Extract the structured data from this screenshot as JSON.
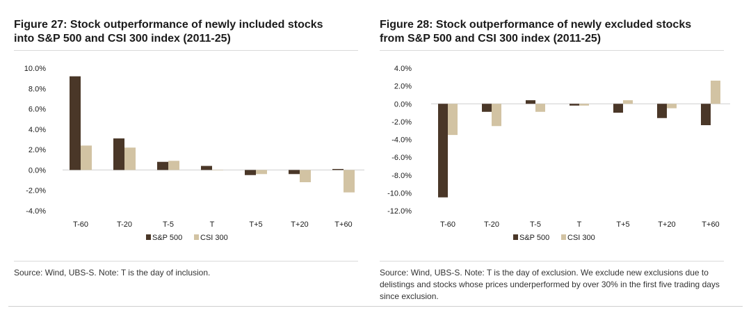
{
  "colors": {
    "sp500": "#4a3728",
    "csi300": "#d2c3a3",
    "zero_line": "#cfcfcf",
    "text": "#1a1a1a"
  },
  "left_panel": {
    "title_line1": "Figure 27: Stock outperformance of newly included stocks",
    "title_line2": "into S&P 500 and CSI 300 index (2011-25)",
    "source": "Source: Wind, UBS-S. Note: T is the day of inclusion."
  },
  "right_panel": {
    "title_line1": "Figure 28: Stock outperformance of newly excluded stocks",
    "title_line2": "from S&P 500 and CSI 300 index (2011-25)",
    "source": "Source: Wind, UBS-S. Note: T is the day of exclusion. We exclude new exclusions due to delistings and stocks whose prices underperformed by over 30% in the first five trading days since exclusion."
  },
  "chart_data": [
    {
      "type": "bar",
      "title": "Figure 27: Stock outperformance of newly included stocks into S&P 500 and CSI 300 index (2011-25)",
      "categories": [
        "T-60",
        "T-20",
        "T-5",
        "T",
        "T+5",
        "T+20",
        "T+60"
      ],
      "series": [
        {
          "name": "S&P 500",
          "values": [
            9.2,
            3.1,
            0.8,
            0.4,
            -0.5,
            -0.4,
            0.1
          ]
        },
        {
          "name": "CSI 300",
          "values": [
            2.4,
            2.2,
            0.9,
            0.0,
            -0.4,
            -1.2,
            -2.2
          ]
        }
      ],
      "ylim": [
        -4.0,
        10.0
      ],
      "yticks": [
        -4.0,
        -2.0,
        0.0,
        2.0,
        4.0,
        6.0,
        8.0,
        10.0
      ],
      "ytick_labels": [
        "-4.0%",
        "-2.0%",
        "0.0%",
        "2.0%",
        "4.0%",
        "6.0%",
        "8.0%",
        "10.0%"
      ],
      "xlabel": "",
      "ylabel": "",
      "legend_position": "bottom-center",
      "grid": false
    },
    {
      "type": "bar",
      "title": "Figure 28: Stock outperformance of newly excluded stocks from S&P 500 and CSI 300 index (2011-25)",
      "categories": [
        "T-60",
        "T-20",
        "T-5",
        "T",
        "T+5",
        "T+20",
        "T+60"
      ],
      "series": [
        {
          "name": "S&P 500",
          "values": [
            -10.5,
            -0.9,
            0.4,
            -0.2,
            -1.0,
            -1.6,
            -2.4
          ]
        },
        {
          "name": "CSI 300",
          "values": [
            -3.5,
            -2.5,
            -0.9,
            -0.2,
            0.4,
            -0.5,
            2.6
          ]
        }
      ],
      "ylim": [
        -12.0,
        4.0
      ],
      "yticks": [
        -12.0,
        -10.0,
        -8.0,
        -6.0,
        -4.0,
        -2.0,
        0.0,
        2.0,
        4.0
      ],
      "ytick_labels": [
        "-12.0%",
        "-10.0%",
        "-8.0%",
        "-6.0%",
        "-4.0%",
        "-2.0%",
        "0.0%",
        "2.0%",
        "4.0%"
      ],
      "xlabel": "",
      "ylabel": "",
      "legend_position": "bottom-center",
      "grid": false
    }
  ]
}
